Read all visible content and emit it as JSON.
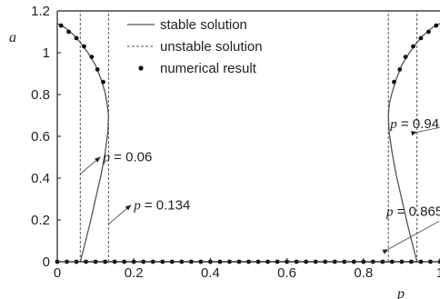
{
  "chart_data": {
    "type": "line",
    "xlabel": "p",
    "ylabel": "a",
    "xlim": [
      0,
      1
    ],
    "ylim": [
      0,
      1.2
    ],
    "x_ticks": [
      0,
      0.2,
      0.4,
      0.6,
      0.8,
      1
    ],
    "x_tick_labels": [
      "0",
      "0.2",
      "0.4",
      "0.6",
      "0.8",
      "1"
    ],
    "y_ticks": [
      0,
      0.2,
      0.4,
      0.6,
      0.8,
      1,
      1.2
    ],
    "y_tick_labels": [
      "0",
      "0.2",
      "0.4",
      "0.6",
      "0.8",
      "1",
      "1.2"
    ],
    "grid": false,
    "legend_position": "top",
    "legend": [
      {
        "label": "stable solution",
        "style": "solid"
      },
      {
        "label": "unstable solution",
        "style": "dashed"
      },
      {
        "label": "numerical result",
        "style": "marker"
      }
    ],
    "series": [
      {
        "name": "stable solution",
        "style": "solid",
        "segments": [
          {
            "points": [
              [
                0,
                1.14
              ],
              [
                0.02,
                1.12
              ],
              [
                0.04,
                1.09
              ],
              [
                0.06,
                1.05
              ],
              [
                0.08,
                1.0
              ],
              [
                0.1,
                0.94
              ],
              [
                0.115,
                0.87
              ],
              [
                0.125,
                0.81
              ],
              [
                0.13,
                0.76
              ],
              [
                0.134,
                0.7
              ],
              [
                0.132,
                0.62
              ],
              [
                0.125,
                0.52
              ],
              [
                0.115,
                0.42
              ],
              [
                0.1,
                0.3
              ],
              [
                0.085,
                0.18
              ],
              [
                0.07,
                0.07
              ],
              [
                0.06,
                0.0
              ]
            ]
          },
          {
            "points": [
              [
                1,
                1.14
              ],
              [
                0.98,
                1.12
              ],
              [
                0.96,
                1.09
              ],
              [
                0.94,
                1.05
              ],
              [
                0.92,
                1.0
              ],
              [
                0.9,
                0.94
              ],
              [
                0.885,
                0.87
              ],
              [
                0.875,
                0.81
              ],
              [
                0.868,
                0.76
              ],
              [
                0.865,
                0.7
              ],
              [
                0.867,
                0.62
              ],
              [
                0.875,
                0.52
              ],
              [
                0.885,
                0.42
              ],
              [
                0.9,
                0.3
              ],
              [
                0.915,
                0.18
              ],
              [
                0.93,
                0.07
              ],
              [
                0.94,
                0.0
              ]
            ]
          },
          {
            "points": [
              [
                0.06,
                0.0
              ],
              [
                0.94,
                0.0
              ]
            ]
          }
        ]
      },
      {
        "name": "unstable solution",
        "style": "dashed",
        "segments": [
          {
            "points": [
              [
                0.06,
                0.0
              ],
              [
                0.06,
                1.2
              ]
            ]
          },
          {
            "points": [
              [
                0.134,
                0.0
              ],
              [
                0.134,
                1.2
              ]
            ]
          },
          {
            "points": [
              [
                0.865,
                0.0
              ],
              [
                0.865,
                1.2
              ]
            ]
          },
          {
            "points": [
              [
                0.94,
                0.0
              ],
              [
                0.94,
                1.2
              ]
            ]
          },
          {
            "points": [
              [
                0,
                0.0
              ],
              [
                0.06,
                0.0
              ]
            ]
          },
          {
            "points": [
              [
                0.94,
                0.0
              ],
              [
                1,
                0.0
              ]
            ]
          }
        ]
      },
      {
        "name": "numerical result",
        "style": "marker",
        "points": [
          [
            0.01,
            1.13
          ],
          [
            0.03,
            1.1
          ],
          [
            0.05,
            1.07
          ],
          [
            0.07,
            1.03
          ],
          [
            0.09,
            0.98
          ],
          [
            0.105,
            0.92
          ],
          [
            0.12,
            0.86
          ],
          [
            0.99,
            1.13
          ],
          [
            0.97,
            1.1
          ],
          [
            0.95,
            1.07
          ],
          [
            0.93,
            1.03
          ],
          [
            0.91,
            0.98
          ],
          [
            0.895,
            0.92
          ],
          [
            0.88,
            0.86
          ],
          [
            0.0,
            0
          ],
          [
            0.025,
            0
          ],
          [
            0.05,
            0
          ],
          [
            0.075,
            0
          ],
          [
            0.1,
            0
          ],
          [
            0.125,
            0
          ],
          [
            0.15,
            0
          ],
          [
            0.175,
            0
          ],
          [
            0.2,
            0
          ],
          [
            0.225,
            0
          ],
          [
            0.25,
            0
          ],
          [
            0.275,
            0
          ],
          [
            0.3,
            0
          ],
          [
            0.325,
            0
          ],
          [
            0.35,
            0
          ],
          [
            0.375,
            0
          ],
          [
            0.4,
            0
          ],
          [
            0.425,
            0
          ],
          [
            0.45,
            0
          ],
          [
            0.475,
            0
          ],
          [
            0.5,
            0
          ],
          [
            0.525,
            0
          ],
          [
            0.55,
            0
          ],
          [
            0.575,
            0
          ],
          [
            0.6,
            0
          ],
          [
            0.625,
            0
          ],
          [
            0.65,
            0
          ],
          [
            0.675,
            0
          ],
          [
            0.7,
            0
          ],
          [
            0.725,
            0
          ],
          [
            0.75,
            0
          ],
          [
            0.775,
            0
          ],
          [
            0.8,
            0
          ],
          [
            0.825,
            0
          ],
          [
            0.85,
            0
          ],
          [
            0.875,
            0
          ],
          [
            0.9,
            0
          ],
          [
            0.925,
            0
          ],
          [
            0.95,
            0
          ],
          [
            0.975,
            0
          ],
          [
            1.0,
            0
          ]
        ]
      }
    ],
    "annotations": [
      {
        "var": "p",
        "text": " = 0.06",
        "target": [
          0.06,
          0.42
        ],
        "label_at": [
          0.12,
          0.48
        ]
      },
      {
        "var": "p",
        "text": " = 0.134",
        "target": [
          0.134,
          0.18
        ],
        "label_at": [
          0.2,
          0.25
        ]
      },
      {
        "var": "p",
        "text": " = 0.94",
        "target": [
          0.94,
          0.62
        ],
        "label_at": [
          0.87,
          0.64
        ]
      },
      {
        "var": "p",
        "text": " = 0.865",
        "target": [
          0.865,
          0.06
        ],
        "label_at": [
          0.86,
          0.22
        ]
      }
    ]
  }
}
